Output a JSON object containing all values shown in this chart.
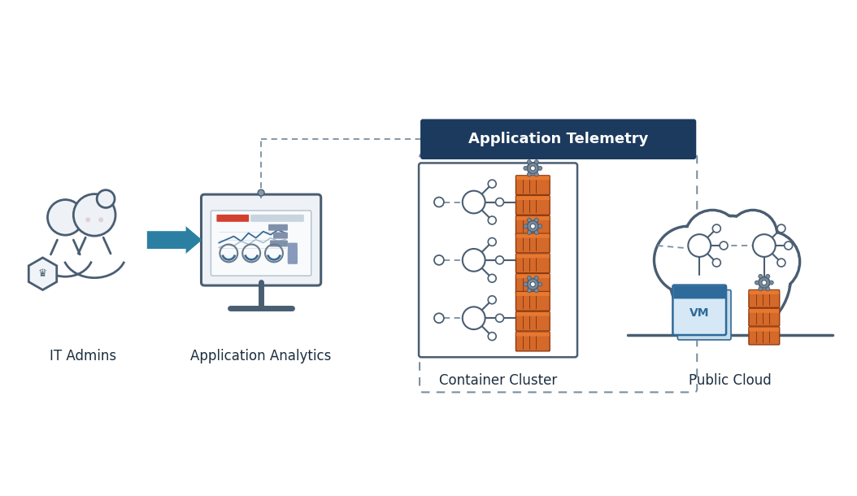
{
  "background_color": "#ffffff",
  "fig_width": 10.54,
  "fig_height": 6.1,
  "dpi": 100,
  "colors": {
    "teal_arrow": "#2b7fa3",
    "orange": "#d4692a",
    "dark_navy": "#1c3557",
    "gray_stroke": "#4a5e72",
    "gray_mid": "#7a8fa0",
    "gray_light": "#b0c0cc",
    "white": "#ffffff",
    "telemetry_bg": "#1c3a5e",
    "vm_blue_dark": "#2e6a9a",
    "vm_blue_light": "#5b9cc8",
    "vm_fill": "#d6e8f5",
    "label_color": "#1c2e40"
  },
  "labels": {
    "it_admins": "IT Admins",
    "app_analytics": "Application Analytics",
    "container_cluster": "Container Cluster",
    "public_cloud": "Public Cloud",
    "app_telemetry": "Application Telemetry"
  }
}
